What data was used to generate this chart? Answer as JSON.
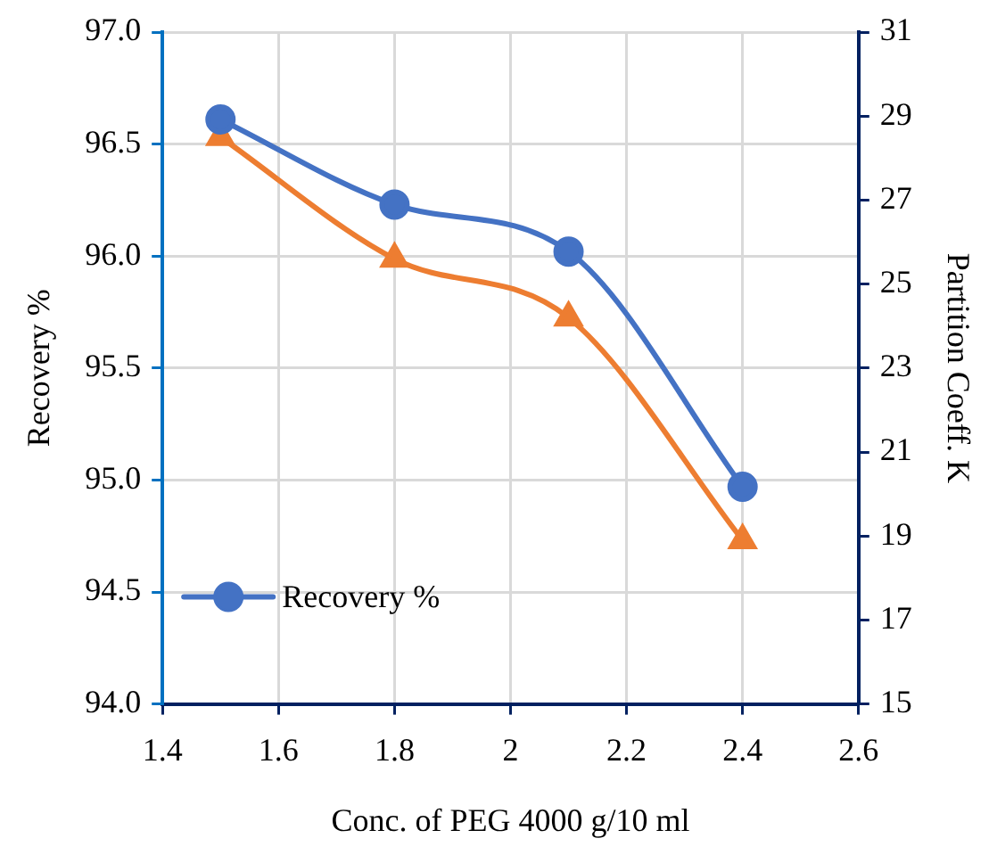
{
  "chart_data": {
    "type": "line",
    "xlabel": "Conc. of PEG 4000 g/10 ml",
    "ylabel": "Recovery %",
    "y2label": "Partition Coeff. K",
    "x": [
      1.5,
      1.8,
      2.1,
      2.4
    ],
    "series": [
      {
        "name": "Recovery %",
        "color": "#4472c4",
        "values": [
          96.61,
          96.23,
          96.02,
          94.97
        ],
        "marker": "circle"
      },
      {
        "color": "#ed7d31",
        "values": [
          28.5,
          25.6,
          24.2,
          18.9
        ],
        "axis": "y2",
        "marker": "triangle"
      }
    ],
    "xlim": [
      1.4,
      2.6
    ],
    "xticks": [
      1.4,
      1.6,
      1.8,
      2,
      2.2,
      2.4,
      2.6
    ],
    "ylim": [
      94,
      97
    ],
    "yticks": [
      {
        "value": 94,
        "label": "94.0"
      },
      94.5,
      {
        "value": 95,
        "label": "95.0"
      },
      95.5,
      {
        "value": 96,
        "label": "96.0"
      },
      96.5,
      {
        "value": 97,
        "label": "97.0"
      }
    ],
    "y2lim": [
      15,
      31
    ],
    "y2ticks": [
      15,
      17,
      19,
      21,
      23,
      25,
      27,
      29,
      31
    ],
    "grid": true,
    "legend": "bottom left",
    "line_style": "solid"
  }
}
